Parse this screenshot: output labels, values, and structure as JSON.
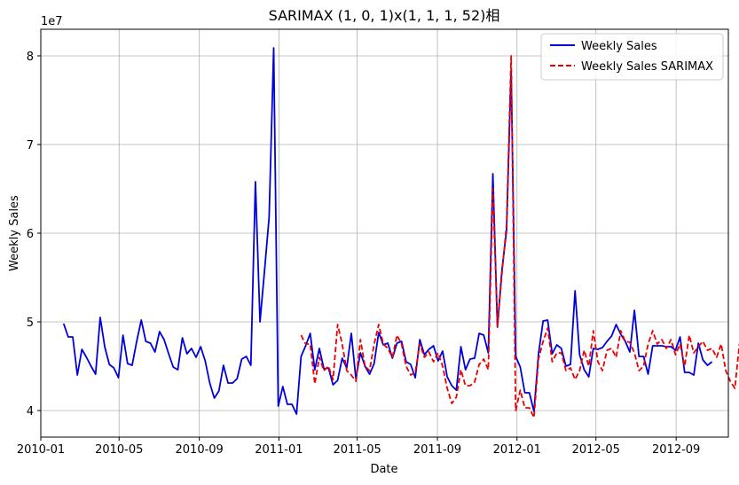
{
  "chart_data": {
    "type": "line",
    "title": "SARIMAX (1, 0, 1)x(1, 1, 1, 52)相",
    "xlabel": "Date",
    "ylabel": "Weekly Sales",
    "y_offset_label": "1e7",
    "ylim": [
      37000000,
      83000000
    ],
    "xlim": [
      "2010-01-01",
      "2012-11-20"
    ],
    "x_ticks": [
      "2010-01",
      "2010-05",
      "2010-09",
      "2011-01",
      "2011-05",
      "2011-09",
      "2012-01",
      "2012-05",
      "2012-09"
    ],
    "y_ticks": [
      {
        "value": 40000000,
        "label": "4"
      },
      {
        "value": 50000000,
        "label": "5"
      },
      {
        "value": 60000000,
        "label": "6"
      },
      {
        "value": 70000000,
        "label": "7"
      },
      {
        "value": 80000000,
        "label": "8"
      }
    ],
    "grid": true,
    "legend_position": "top-right",
    "series": [
      {
        "name": "Weekly Sales",
        "color": "#0000dd",
        "style": "solid",
        "start": "2010-02-05",
        "step_days": 7,
        "values": [
          49.8,
          48.3,
          48.3,
          44.0,
          46.9,
          46.0,
          45.0,
          44.1,
          50.5,
          47.2,
          45.2,
          44.8,
          43.7,
          48.5,
          45.3,
          45.1,
          47.8,
          50.2,
          47.8,
          47.6,
          46.6,
          48.9,
          48.0,
          46.4,
          44.9,
          44.6,
          48.2,
          46.4,
          47.0,
          46.0,
          47.2,
          45.6,
          43.1,
          41.4,
          42.2,
          45.1,
          43.1,
          43.1,
          43.6,
          45.8,
          46.1,
          45.1,
          65.8,
          50.0,
          55.8,
          61.8,
          80.9,
          40.5,
          42.7,
          40.7,
          40.7,
          39.6,
          46.1,
          47.3,
          48.7,
          44.6,
          47.0,
          44.7,
          44.8,
          42.9,
          43.4,
          45.9,
          44.8,
          48.7,
          43.6,
          46.5,
          45.0,
          44.1,
          45.3,
          48.8,
          47.4,
          47.6,
          45.9,
          47.6,
          47.8,
          45.5,
          45.2,
          43.7,
          48.0,
          46.3,
          46.9,
          47.3,
          45.6,
          46.7,
          43.8,
          42.8,
          42.3,
          47.2,
          44.6,
          45.8,
          45.9,
          48.7,
          48.5,
          46.5,
          66.7,
          49.4,
          55.9,
          60.3,
          78.5,
          46.1,
          44.9,
          42.0,
          42.0,
          39.9,
          46.4,
          50.1,
          50.2,
          46.4,
          47.4,
          47.0,
          45.0,
          45.2,
          53.5,
          46.3,
          44.6,
          43.8,
          47.0,
          46.9,
          47.1,
          47.8,
          48.4,
          49.7,
          48.6,
          47.8,
          46.6,
          51.3,
          46.1,
          46.1,
          44.1,
          47.3,
          47.3,
          47.3,
          47.2,
          47.2,
          46.8,
          48.3,
          44.3,
          44.3,
          44.0,
          47.6,
          45.7,
          45.1,
          45.5
        ]
      },
      {
        "name": "Weekly Sales SARIMAX",
        "color": "#ee0000",
        "style": "dashed",
        "start": "2011-02-04",
        "step_days": 7,
        "values": [
          48.5,
          47.5,
          47.5,
          43.0,
          46.0,
          44.5,
          45.0,
          43.5,
          49.7,
          47.5,
          44.5,
          44.0,
          43.3,
          48.0,
          45.0,
          44.5,
          47.5,
          49.7,
          47.5,
          47.0,
          46.0,
          48.5,
          47.5,
          45.0,
          44.0,
          44.3,
          47.5,
          46.0,
          46.6,
          45.5,
          46.5,
          45.0,
          42.5,
          40.8,
          41.5,
          44.6,
          42.8,
          42.8,
          43.2,
          45.2,
          45.8,
          44.6,
          65.0,
          49.5,
          55.5,
          61.0,
          80.0,
          40.0,
          42.3,
          40.3,
          40.3,
          39.2,
          45.8,
          47.8,
          49.3,
          45.5,
          46.5,
          46.5,
          44.5,
          44.8,
          43.5,
          44.5,
          46.8,
          45.0,
          49.0,
          45.5,
          44.5,
          46.8,
          47.0,
          46.0,
          49.0,
          47.8,
          47.7,
          46.5,
          44.5,
          45.0,
          47.5,
          49.0,
          47.5,
          48.0,
          47.0,
          48.0,
          46.3,
          47.5,
          45.0,
          48.5,
          46.5,
          47.2,
          47.8,
          46.8,
          47.0,
          46.0,
          47.5,
          44.5,
          43.3,
          42.5,
          47.5,
          46.0,
          46.3,
          46.3
        ]
      }
    ]
  }
}
